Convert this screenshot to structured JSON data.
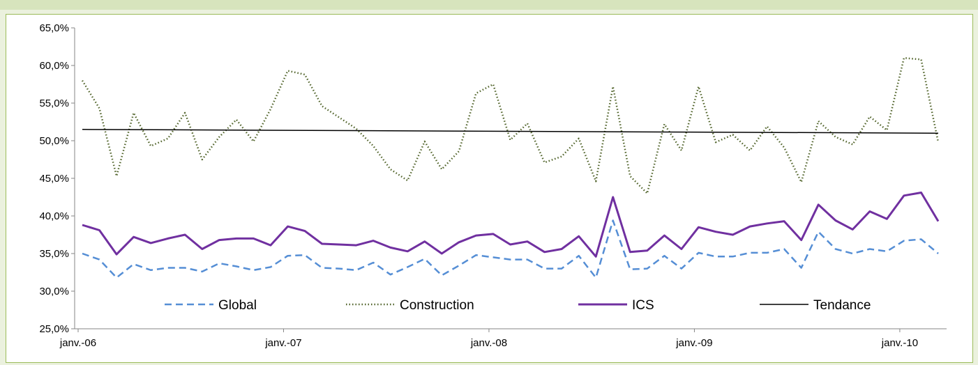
{
  "chart_data": {
    "type": "line",
    "title": "",
    "xlabel": "",
    "ylabel": "",
    "ylim": [
      25.0,
      65.0
    ],
    "y_ticks": [
      "25,0%",
      "30,0%",
      "35,0%",
      "40,0%",
      "45,0%",
      "50,0%",
      "55,0%",
      "60,0%",
      "65,0%"
    ],
    "x_tick_labels": [
      "janv.-06",
      "janv.-07",
      "janv.-08",
      "janv.-09",
      "janv.-10"
    ],
    "x_start": "2006-01",
    "x_end": "2010-03",
    "grid": false,
    "legend_position": "bottom-inside",
    "series": [
      {
        "name": "Global",
        "style": "dashed",
        "color": "#558ed5",
        "values": [
          35.0,
          34.2,
          31.8,
          33.6,
          32.8,
          33.1,
          33.1,
          32.6,
          33.7,
          33.3,
          32.8,
          33.2,
          34.7,
          34.8,
          33.1,
          33.0,
          32.8,
          33.8,
          32.2,
          33.2,
          34.3,
          32.1,
          33.4,
          34.8,
          34.5,
          34.2,
          34.2,
          33.0,
          33.0,
          34.7,
          31.8,
          39.4,
          32.9,
          33.0,
          34.7,
          33.0,
          35.1,
          34.6,
          34.6,
          35.1,
          35.1,
          35.6,
          33.1,
          37.9,
          35.6,
          35.0,
          35.6,
          35.3,
          36.7,
          36.9,
          35.0
        ]
      },
      {
        "name": "Construction",
        "style": "dotted",
        "color": "#4f6228",
        "values": [
          58.0,
          54.3,
          45.3,
          53.7,
          49.3,
          50.3,
          53.7,
          47.5,
          50.5,
          52.8,
          49.9,
          54.2,
          59.3,
          58.8,
          54.6,
          53.1,
          51.6,
          49.3,
          46.2,
          44.7,
          49.9,
          46.2,
          48.6,
          56.3,
          57.5,
          50.1,
          52.3,
          47.1,
          47.9,
          50.3,
          44.6,
          57.2,
          45.3,
          43.0,
          52.2,
          48.7,
          57.2,
          49.8,
          50.8,
          48.7,
          51.9,
          49.1,
          44.5,
          52.6,
          50.5,
          49.5,
          53.2,
          51.4,
          61.0,
          60.8,
          49.8
        ]
      },
      {
        "name": "ICS",
        "style": "solid",
        "color": "#7030a0",
        "values": [
          38.8,
          38.1,
          34.9,
          37.2,
          36.4,
          37.0,
          37.5,
          35.6,
          36.8,
          37.0,
          37.0,
          36.1,
          38.6,
          38.0,
          36.3,
          36.2,
          36.1,
          36.7,
          35.8,
          35.3,
          36.6,
          35.0,
          36.5,
          37.4,
          37.6,
          36.2,
          36.6,
          35.2,
          35.6,
          37.3,
          34.6,
          42.5,
          35.2,
          35.4,
          37.4,
          35.6,
          38.5,
          37.9,
          37.5,
          38.6,
          39.0,
          39.3,
          36.8,
          41.5,
          39.4,
          38.2,
          40.6,
          39.6,
          42.7,
          43.1,
          39.3
        ]
      },
      {
        "name": "Tendance",
        "style": "solid-thin",
        "color": "#000000",
        "values": [
          51.5,
          51.0
        ],
        "values_at": [
          "2006-01",
          "2010-03"
        ]
      }
    ]
  }
}
